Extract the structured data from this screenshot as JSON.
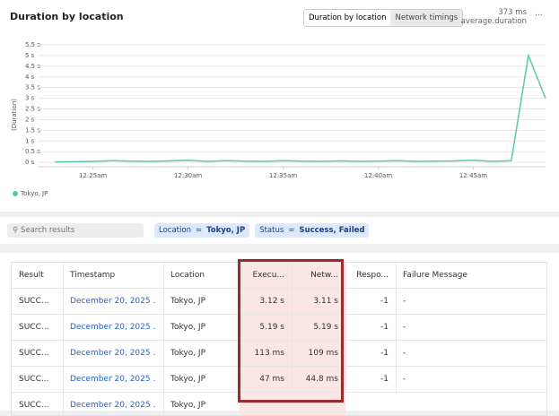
{
  "panel": {
    "title": "Duration by location",
    "tabs": [
      "Duration by location",
      "Network timings"
    ],
    "summary_value": "373 ms",
    "summary_label": "average.duration",
    "menu": "..."
  },
  "chart_data": {
    "type": "line",
    "y_label": "(Duration)",
    "x": [
      23,
      24,
      25,
      26,
      27,
      28,
      29,
      30,
      31,
      32,
      33,
      34,
      35,
      36,
      37,
      38,
      39,
      40,
      41,
      42,
      43,
      44,
      45,
      46,
      47,
      47.9,
      48.8
    ],
    "xlim": [
      22.8,
      48.8
    ],
    "xticks": [
      {
        "value": 25,
        "label": "12:25am"
      },
      {
        "value": 30,
        "label": "12:30am"
      },
      {
        "value": 35,
        "label": "12:35am"
      },
      {
        "value": 40,
        "label": "12:40am"
      },
      {
        "value": 45,
        "label": "12:45am"
      }
    ],
    "ylim": [
      -0.12,
      5.5
    ],
    "yticks": [
      {
        "value": 0,
        "label": "0 s"
      },
      {
        "value": 0.5,
        "label": "0.5 s"
      },
      {
        "value": 1,
        "label": "1 s"
      },
      {
        "value": 1.5,
        "label": "1.5 s"
      },
      {
        "value": 2,
        "label": "2 s"
      },
      {
        "value": 2.5,
        "label": "2.5 s"
      },
      {
        "value": 3,
        "label": "3 s"
      },
      {
        "value": 3.5,
        "label": "3.5 s"
      },
      {
        "value": 4,
        "label": "4 s"
      },
      {
        "value": 4.5,
        "label": "4.5 s"
      },
      {
        "value": 5,
        "label": "5 s"
      },
      {
        "value": 5.5,
        "label": "5.5 s"
      }
    ],
    "grid": true,
    "series": [
      {
        "name": "Tokyo, JP",
        "color": "#5cc6a8",
        "values": [
          0.02,
          0.03,
          0.05,
          0.08,
          0.06,
          0.05,
          0.07,
          0.1,
          0.05,
          0.08,
          0.06,
          0.05,
          0.08,
          0.06,
          0.05,
          0.07,
          0.05,
          0.06,
          0.08,
          0.05,
          0.06,
          0.07,
          0.1,
          0.05,
          0.08,
          5,
          3
        ]
      }
    ]
  },
  "filters": {
    "search_placeholder": "Search results",
    "chips": [
      {
        "field": "Location",
        "op": "=",
        "value": "Tokyo, JP"
      },
      {
        "field": "Status",
        "op": "=",
        "value": "Success, Failed"
      }
    ]
  },
  "table": {
    "headers": [
      "Result",
      "Timestamp",
      "Location",
      "Execu...",
      "Netw...",
      "Respo...",
      "Failure Message"
    ],
    "rows": [
      [
        "SUCC...",
        "December 20, 2025 ...",
        "Tokyo, JP",
        "3.12 s",
        "3.11 s",
        "-1",
        "-"
      ],
      [
        "SUCC...",
        "December 20, 2025 ...",
        "Tokyo, JP",
        "5.19 s",
        "5.19 s",
        "-1",
        "-"
      ],
      [
        "SUCC...",
        "December 20, 2025 ...",
        "Tokyo, JP",
        "113 ms",
        "109 ms",
        "-1",
        "-"
      ],
      [
        "SUCC...",
        "December 20, 2025 ...",
        "Tokyo, JP",
        "47 ms",
        "44.8 ms",
        "-1",
        "-"
      ],
      [
        "SUCC...",
        "December 20, 2025 ...",
        "Tokyo, JP"
      ]
    ]
  }
}
